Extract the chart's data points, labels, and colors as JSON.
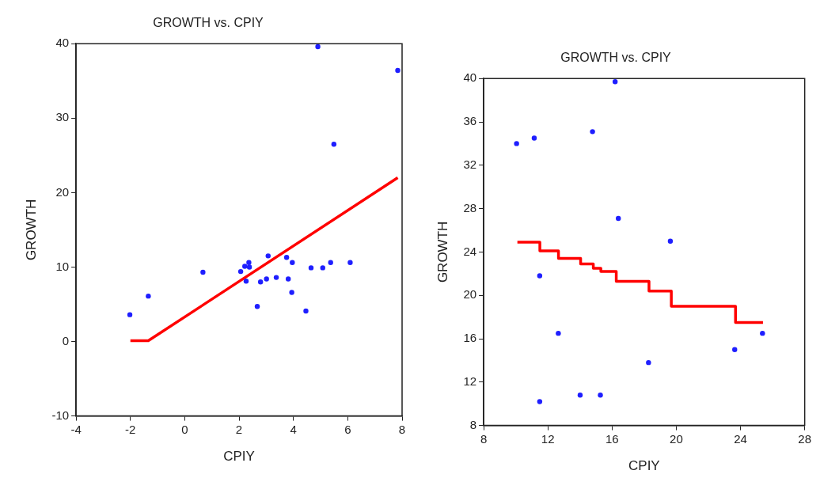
{
  "chart_data": [
    {
      "type": "scatter",
      "title": "GROWTH vs. CPIY",
      "xlabel": "CPIY",
      "ylabel": "GROWTH",
      "xlim": [
        -4,
        8
      ],
      "xticks": [
        -4,
        -2,
        0,
        2,
        4,
        6,
        8
      ],
      "ylim": [
        -10,
        40
      ],
      "yticks": [
        -10,
        0,
        10,
        20,
        30,
        40
      ],
      "grid": false,
      "legend": false,
      "series": [
        {
          "marker": "circle",
          "color": "#1f1fff",
          "x": [
            -2.02,
            -1.34,
            0.67,
            2.06,
            2.21,
            2.36,
            2.38,
            2.26,
            2.67,
            2.79,
            3.01,
            3.07,
            3.37,
            3.75,
            3.81,
            3.96,
            3.94,
            4.46,
            4.65,
            4.9,
            5.08,
            5.37,
            5.49,
            6.09,
            7.84
          ],
          "values": [
            3.6,
            6.1,
            9.3,
            9.4,
            10.1,
            10.6,
            10.0,
            8.1,
            4.7,
            8.0,
            8.4,
            11.5,
            8.6,
            11.3,
            8.4,
            10.6,
            6.6,
            4.1,
            9.9,
            39.6,
            9.9,
            10.6,
            26.5,
            10.6,
            36.4
          ]
        },
        {
          "type": "line",
          "marker": "none",
          "color": "#ff0000",
          "line_style": "solid",
          "x": [
            -2.0,
            -1.34,
            7.84
          ],
          "values": [
            0.1,
            0.1,
            22.0
          ]
        }
      ]
    },
    {
      "type": "scatter",
      "title": "GROWTH vs. CPIY",
      "xlabel": "CPIY",
      "ylabel": "GROWTH",
      "xlim": [
        8,
        28
      ],
      "xticks": [
        8,
        12,
        16,
        20,
        24,
        28
      ],
      "ylim": [
        8,
        40
      ],
      "yticks": [
        8,
        12,
        16,
        20,
        24,
        28,
        32,
        36,
        40
      ],
      "grid": false,
      "legend": false,
      "series": [
        {
          "marker": "circle",
          "color": "#1f1fff",
          "x": [
            10.05,
            11.15,
            14.78,
            16.19,
            16.39,
            19.63,
            11.49,
            12.65,
            18.27,
            23.64,
            25.37,
            11.49,
            14.01,
            15.27
          ],
          "values": [
            34.0,
            34.5,
            35.1,
            39.7,
            27.1,
            25.0,
            21.8,
            16.5,
            13.8,
            15.0,
            16.5,
            10.2,
            10.8,
            10.8
          ]
        },
        {
          "type": "step",
          "marker": "none",
          "color": "#ff0000",
          "line_style": "solid",
          "x": [
            10.1,
            11.5,
            12.66,
            14.04,
            14.83,
            15.3,
            16.26,
            18.3,
            19.69,
            23.69,
            25.4
          ],
          "values": [
            24.9,
            24.1,
            23.4,
            22.9,
            22.5,
            22.2,
            21.3,
            20.4,
            19.0,
            17.5,
            17.5
          ]
        }
      ]
    }
  ]
}
